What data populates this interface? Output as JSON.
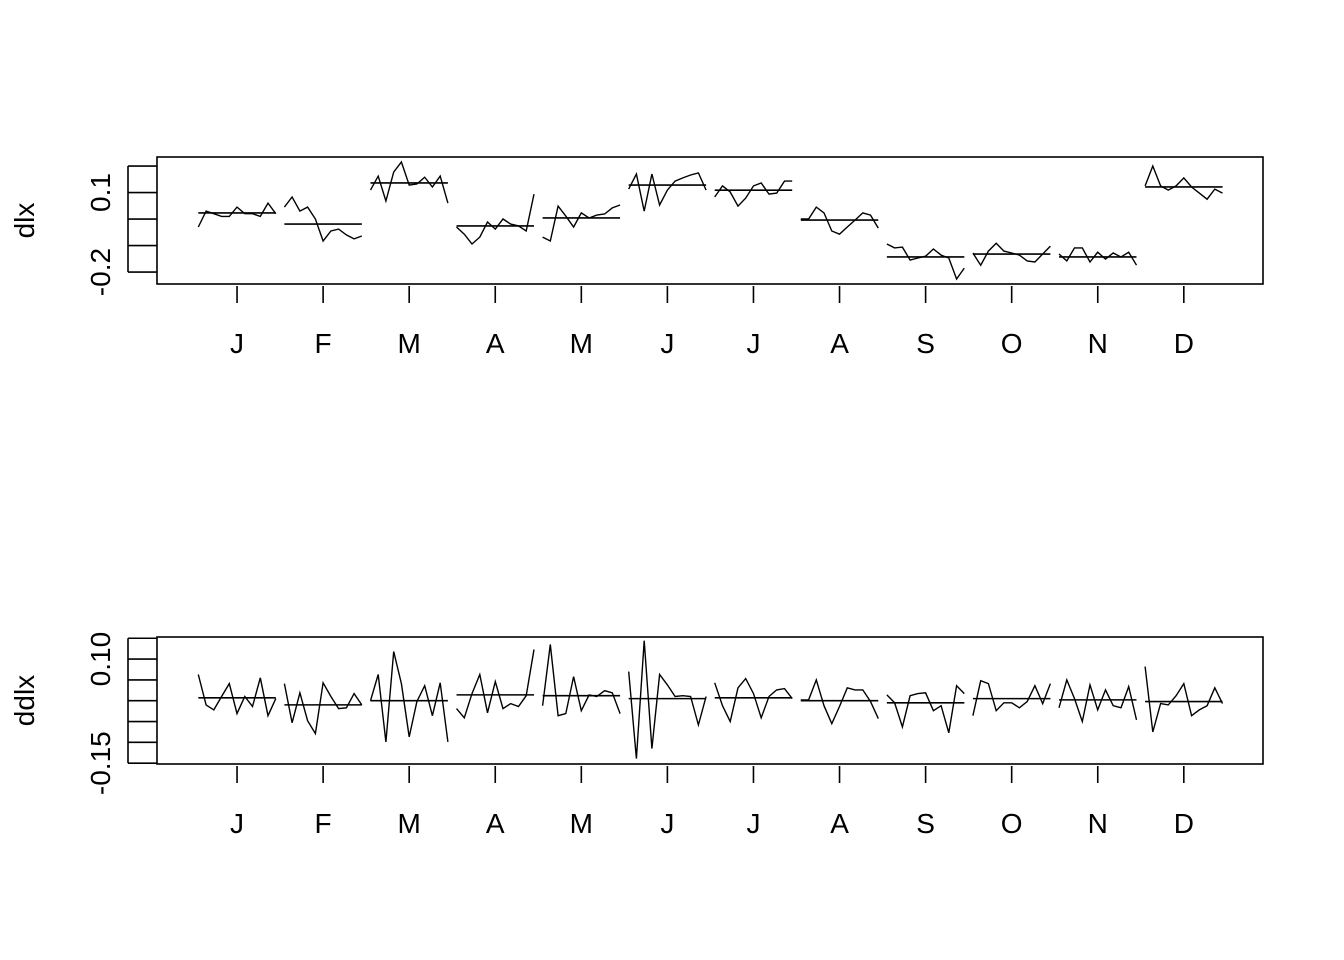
{
  "chart_data": [
    {
      "type": "monthplot",
      "ylabel": "dlx",
      "categories": [
        "J",
        "F",
        "M",
        "A",
        "M",
        "J",
        "J",
        "A",
        "S",
        "O",
        "N",
        "D"
      ],
      "xlim": [
        0.07,
        12.92
      ],
      "ylim": [
        -0.245,
        0.234
      ],
      "yticks": [
        {
          "value": -0.2,
          "label": "-0.2"
        },
        {
          "value": -0.1,
          "label": null
        },
        {
          "value": 0.0,
          "label": null
        },
        {
          "value": 0.1,
          "label": "0.1"
        },
        {
          "value": 0.2,
          "label": null
        }
      ],
      "values": [
        [
          -0.03,
          0.03,
          0.02,
          0.01,
          0.01,
          0.045,
          0.02,
          0.02,
          0.01,
          0.06,
          0.02
        ],
        [
          0.045,
          0.083,
          0.03,
          0.045,
          0,
          -0.083,
          -0.045,
          -0.038,
          -0.06,
          -0.075,
          -0.064
        ],
        [
          0.109,
          0.162,
          0.068,
          0.177,
          0.215,
          0.128,
          0.132,
          0.158,
          0.121,
          0.162,
          0.06
        ],
        [
          -0.03,
          -0.057,
          -0.094,
          -0.068,
          -0.011,
          -0.038,
          0,
          -0.019,
          -0.026,
          -0.045,
          0.094
        ],
        [
          -0.068,
          -0.083,
          0.049,
          0.011,
          -0.03,
          0.023,
          0.004,
          0.015,
          0.019,
          0.042,
          0.053
        ],
        [
          0.113,
          0.17,
          0.03,
          0.17,
          0.053,
          0.109,
          0.143,
          0.155,
          0.166,
          0.174,
          0.109
        ],
        [
          0.083,
          0.125,
          0.102,
          0.049,
          0.079,
          0.125,
          0.136,
          0.094,
          0.098,
          0.143,
          0.143
        ],
        [
          0,
          0,
          0.045,
          0.023,
          -0.045,
          -0.057,
          -0.03,
          -0.004,
          0.023,
          0.015,
          -0.034
        ],
        [
          -0.094,
          -0.109,
          -0.106,
          -0.155,
          -0.147,
          -0.14,
          -0.113,
          -0.136,
          -0.147,
          -0.226,
          -0.185
        ],
        [
          -0.128,
          -0.174,
          -0.121,
          -0.091,
          -0.121,
          -0.128,
          -0.136,
          -0.158,
          -0.162,
          -0.132,
          -0.102
        ],
        [
          -0.132,
          -0.158,
          -0.109,
          -0.109,
          -0.162,
          -0.125,
          -0.151,
          -0.128,
          -0.143,
          -0.125,
          -0.174
        ],
        [
          0.125,
          0.2,
          0.125,
          0.109,
          0.125,
          0.155,
          0.121,
          0.098,
          0.075,
          0.113,
          0.098
        ]
      ],
      "means": [
        0.023,
        -0.019,
        0.136,
        -0.026,
        0.004,
        0.128,
        0.109,
        -0.004,
        -0.143,
        -0.132,
        -0.143,
        0.121
      ]
    },
    {
      "type": "monthplot",
      "ylabel": "ddlx",
      "categories": [
        "J",
        "F",
        "M",
        "A",
        "M",
        "J",
        "J",
        "A",
        "S",
        "O",
        "N",
        "D"
      ],
      "xlim": [
        0.07,
        12.92
      ],
      "ylim": [
        -0.152,
        0.153
      ],
      "yticks": [
        {
          "value": -0.15,
          "label": "-0.15"
        },
        {
          "value": -0.1,
          "label": null
        },
        {
          "value": -0.05,
          "label": null
        },
        {
          "value": 0.0,
          "label": null
        },
        {
          "value": 0.05,
          "label": null
        },
        {
          "value": 0.1,
          "label": "0.10"
        },
        {
          "value": 0.15,
          "label": null
        }
      ],
      "values": [
        [
          0.063,
          -0.01,
          -0.022,
          0.01,
          0.041,
          -0.031,
          0.01,
          -0.014,
          0.055,
          -0.036,
          0.005
        ],
        [
          0.041,
          -0.053,
          0.019,
          -0.048,
          -0.079,
          0.043,
          0.01,
          -0.019,
          -0.017,
          0.017,
          -0.01
        ],
        [
          0,
          0.063,
          -0.099,
          0.118,
          0.041,
          -0.087,
          -0.002,
          0.036,
          -0.036,
          0.043,
          -0.099
        ],
        [
          -0.019,
          -0.041,
          0.017,
          0.063,
          -0.029,
          0.046,
          -0.019,
          -0.007,
          -0.014,
          0.012,
          0.123
        ],
        [
          -0.012,
          0.135,
          -0.036,
          -0.031,
          0.058,
          -0.024,
          0.014,
          0.01,
          0.024,
          0.019,
          -0.031
        ],
        [
          0.07,
          -0.139,
          0.144,
          -0.115,
          0.063,
          0.038,
          0.01,
          0.012,
          0.01,
          -0.058,
          0.01
        ],
        [
          0.043,
          -0.012,
          -0.05,
          0.031,
          0.053,
          0.017,
          -0.041,
          0.01,
          0.026,
          0.029,
          0.005
        ],
        [
          0.002,
          0.002,
          0.05,
          -0.012,
          -0.055,
          -0.014,
          0.031,
          0.026,
          0.026,
          -0.002,
          -0.043
        ],
        [
          0.014,
          -0.005,
          -0.063,
          0.012,
          0.017,
          0.019,
          -0.024,
          -0.012,
          -0.077,
          0.036,
          0.017
        ],
        [
          -0.036,
          0.048,
          0.041,
          -0.024,
          -0.005,
          -0.005,
          -0.017,
          -0.002,
          0.036,
          -0.007,
          0.041
        ],
        [
          -0.017,
          0.05,
          0.005,
          -0.05,
          0.038,
          -0.022,
          0.026,
          -0.012,
          -0.017,
          0.034,
          -0.046
        ],
        [
          0.082,
          -0.075,
          -0.007,
          -0.01,
          0.012,
          0.041,
          -0.036,
          -0.022,
          -0.012,
          0.031,
          -0.007
        ]
      ],
      "means": [
        0.007,
        -0.01,
        0,
        0.014,
        0.012,
        0.005,
        0.007,
        0,
        -0.005,
        0.005,
        0.002,
        -0.002
      ]
    }
  ]
}
